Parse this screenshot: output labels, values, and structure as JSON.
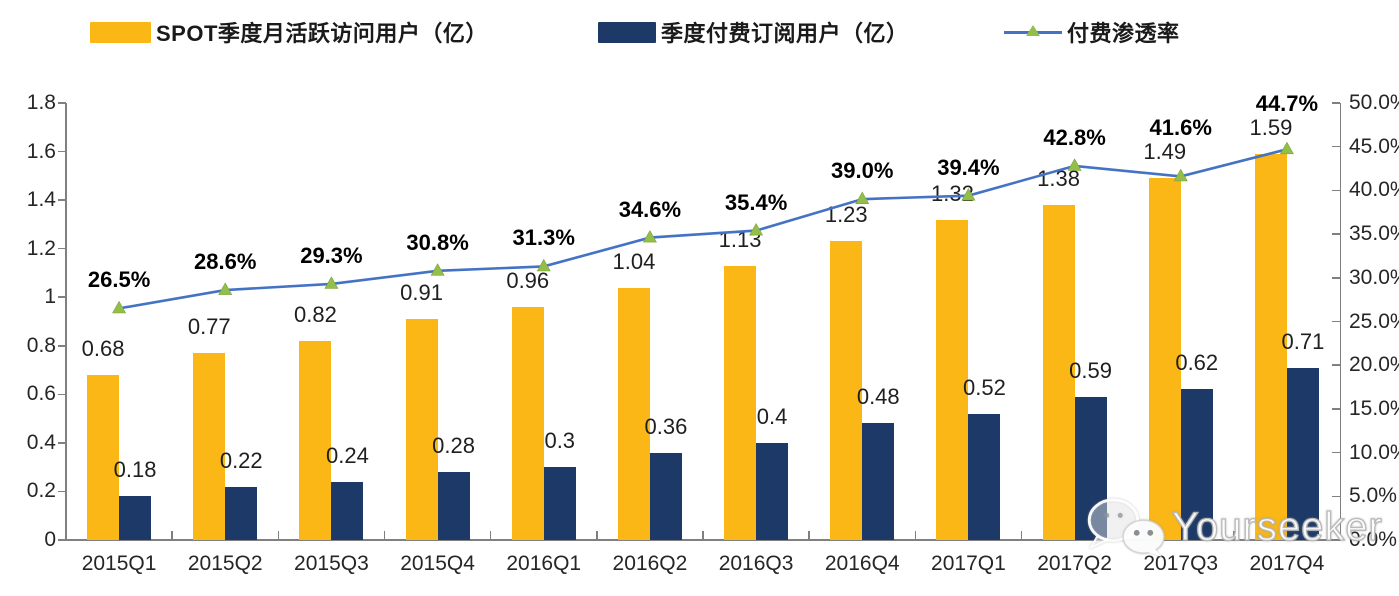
{
  "legend": {
    "items": [
      {
        "label_prefix": "SPOT",
        "label": "季度月活跃访问用户（亿）",
        "color": "#FBB715",
        "type": "bar"
      },
      {
        "label_prefix": "",
        "label": "季度付费订阅用户（亿）",
        "color": "#1C3968",
        "type": "bar"
      },
      {
        "label_prefix": "",
        "label": "付费渗透率",
        "color": "#4472C4",
        "marker_color": "#94BE4A",
        "type": "line"
      }
    ]
  },
  "watermark": {
    "icon": "wechat-icon",
    "text": "Yourseeker"
  },
  "colors": {
    "mau_bar": "#FBB715",
    "subs_bar": "#1C3968",
    "penetration_line": "#4472C4",
    "penetration_marker": "#94BE4A",
    "axis": "#808080",
    "label_text": "#262626"
  },
  "chart_data": {
    "type": "bar",
    "subtype": "grouped-bars-with-line",
    "categories": [
      "2015Q1",
      "2015Q2",
      "2015Q3",
      "2015Q4",
      "2016Q1",
      "2016Q2",
      "2016Q3",
      "2016Q4",
      "2017Q1",
      "2017Q2",
      "2017Q3",
      "2017Q4"
    ],
    "series": [
      {
        "name": "SPOT季度月活跃访问用户（亿）",
        "type": "bar",
        "axis": "left",
        "color": "#FBB715",
        "values": [
          0.68,
          0.77,
          0.82,
          0.91,
          0.96,
          1.04,
          1.13,
          1.23,
          1.32,
          1.38,
          1.49,
          1.59
        ],
        "labels": [
          "0.68",
          "0.77",
          "0.82",
          "0.91",
          "0.96",
          "1.04",
          "1.13",
          "1.23",
          "1.32",
          "1.38",
          "1.49",
          "1.59"
        ]
      },
      {
        "name": "季度付费订阅用户（亿）",
        "type": "bar",
        "axis": "left",
        "color": "#1C3968",
        "values": [
          0.18,
          0.22,
          0.24,
          0.28,
          0.3,
          0.36,
          0.4,
          0.48,
          0.52,
          0.59,
          0.62,
          0.71
        ],
        "labels": [
          "0.18",
          "0.22",
          "0.24",
          "0.28",
          "0.3",
          "0.36",
          "0.4",
          "0.48",
          "0.52",
          "0.59",
          "0.62",
          "0.71"
        ]
      },
      {
        "name": "付费渗透率",
        "type": "line",
        "axis": "right",
        "color": "#4472C4",
        "marker": "triangle",
        "marker_color": "#94BE4A",
        "values": [
          26.5,
          28.6,
          29.3,
          30.8,
          31.3,
          34.6,
          35.4,
          39.0,
          39.4,
          42.8,
          41.6,
          44.7
        ],
        "labels": [
          "26.5%",
          "28.6%",
          "29.3%",
          "30.8%",
          "31.3%",
          "34.6%",
          "35.4%",
          "39.0%",
          "39.4%",
          "42.8%",
          "41.6%",
          "44.7%"
        ]
      }
    ],
    "left_axis": {
      "min": 0,
      "max": 1.8,
      "ticks": [
        "0",
        "0.2",
        "0.4",
        "0.6",
        "0.8",
        "1",
        "1.2",
        "1.4",
        "1.6",
        "1.8"
      ]
    },
    "right_axis": {
      "min": 0,
      "max": 50.0,
      "ticks": [
        "0.0%",
        "5.0%",
        "10.0%",
        "15.0%",
        "20.0%",
        "25.0%",
        "30.0%",
        "35.0%",
        "40.0%",
        "45.0%",
        "50.0%"
      ]
    },
    "legend_position": "top",
    "grid": false
  }
}
